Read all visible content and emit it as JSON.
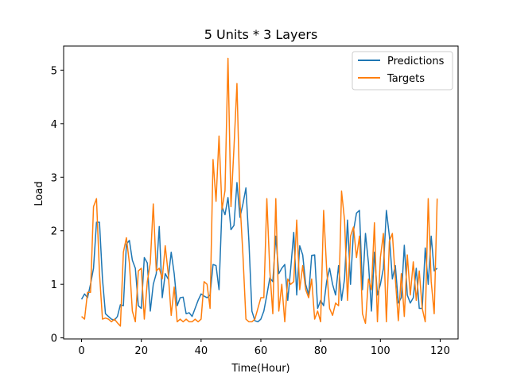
{
  "chart_data": {
    "type": "line",
    "title": "5 Units * 3 Layers",
    "xlabel": "Time(Hour)",
    "ylabel": "Load",
    "xlim": [
      -6,
      126
    ],
    "ylim": [
      -0.02,
      5.45
    ],
    "xticks": [
      0,
      20,
      40,
      60,
      80,
      100,
      120
    ],
    "yticks": [
      0,
      1,
      2,
      3,
      4,
      5
    ],
    "grid": false,
    "legend_position": "top-right",
    "series": [
      {
        "name": "Predictions",
        "color": "#1f77b4",
        "values": [
          0.72,
          0.82,
          0.75,
          1.0,
          1.3,
          2.16,
          2.16,
          1.1,
          0.45,
          0.4,
          0.35,
          0.33,
          0.4,
          0.62,
          0.6,
          1.75,
          1.82,
          1.45,
          1.3,
          0.6,
          0.55,
          1.5,
          1.4,
          0.5,
          1.0,
          1.2,
          2.08,
          0.75,
          1.2,
          1.1,
          1.6,
          1.2,
          0.6,
          0.75,
          0.76,
          0.45,
          0.47,
          0.4,
          0.55,
          0.7,
          0.82,
          0.78,
          0.75,
          0.8,
          1.37,
          1.35,
          0.9,
          2.45,
          2.3,
          2.62,
          2.02,
          2.1,
          2.9,
          2.25,
          2.5,
          2.8,
          1.8,
          0.5,
          0.32,
          0.3,
          0.35,
          0.5,
          0.8,
          1.12,
          1.05,
          1.9,
          1.2,
          1.3,
          1.37,
          0.7,
          1.3,
          1.97,
          0.8,
          1.72,
          1.55,
          1.0,
          0.8,
          1.54,
          1.55,
          0.55,
          0.7,
          0.6,
          1.05,
          1.3,
          1.0,
          0.8,
          1.35,
          0.7,
          1.1,
          2.2,
          1.0,
          2.0,
          2.33,
          2.38,
          0.9,
          1.95,
          1.4,
          0.5,
          1.6,
          0.8,
          1.0,
          1.3,
          2.38,
          1.9,
          1.1,
          1.35,
          0.65,
          0.75,
          1.73,
          0.8,
          0.65,
          0.75,
          1.3,
          0.55,
          0.55,
          1.68,
          1.0,
          1.9,
          1.25,
          1.3
        ]
      },
      {
        "name": "Targets",
        "color": "#ff7f0e",
        "values": [
          0.4,
          0.35,
          0.85,
          0.85,
          2.45,
          2.6,
          1.2,
          0.35,
          0.37,
          0.35,
          0.3,
          0.35,
          0.28,
          0.22,
          1.6,
          1.87,
          1.4,
          0.5,
          0.3,
          1.25,
          1.3,
          0.35,
          1.05,
          1.4,
          2.5,
          1.25,
          1.3,
          1.1,
          1.72,
          1.2,
          0.42,
          0.95,
          0.3,
          0.35,
          0.3,
          0.35,
          0.3,
          0.3,
          0.35,
          0.3,
          0.35,
          1.05,
          1.0,
          0.55,
          3.33,
          2.55,
          3.77,
          2.4,
          2.75,
          5.22,
          2.45,
          3.55,
          4.75,
          2.55,
          1.55,
          0.35,
          0.3,
          0.3,
          0.35,
          0.55,
          0.75,
          0.75,
          2.6,
          1.25,
          0.45,
          2.6,
          0.5,
          1.0,
          0.3,
          1.1,
          1.0,
          1.05,
          2.2,
          0.9,
          1.35,
          0.9,
          0.75,
          1.1,
          0.35,
          0.5,
          0.3,
          2.38,
          1.3,
          0.55,
          0.42,
          0.65,
          0.6,
          2.74,
          2.2,
          0.7,
          1.9,
          2.07,
          1.5,
          1.9,
          0.45,
          0.27,
          1.1,
          0.9,
          2.15,
          0.3,
          1.5,
          1.95,
          0.3,
          1.8,
          1.95,
          1.1,
          0.32,
          1.2,
          0.4,
          1.55,
          0.8,
          1.42,
          0.7,
          1.25,
          0.55,
          0.3,
          2.6,
          1.05,
          0.45,
          2.6
        ]
      }
    ]
  }
}
